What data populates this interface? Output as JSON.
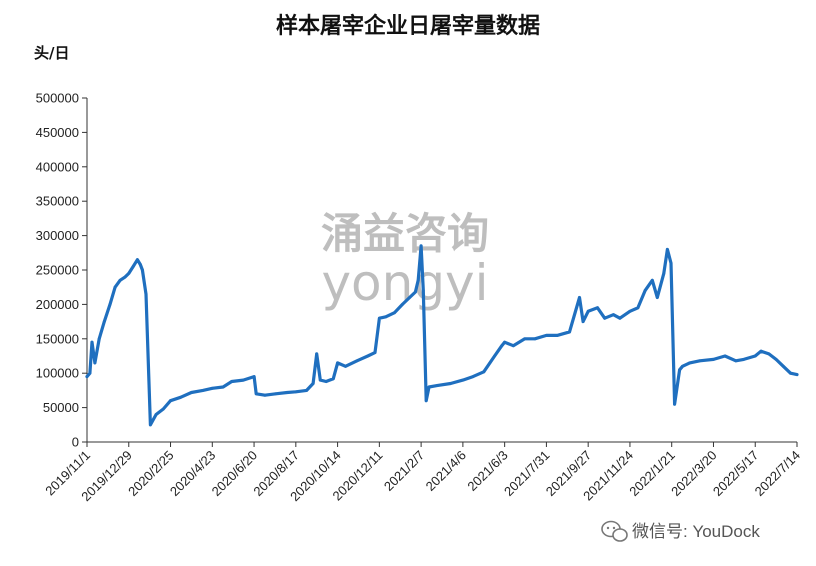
{
  "chart_data": {
    "type": "line",
    "title": "样本屠宰企业日屠宰量数据",
    "ylabel": "头/日",
    "xlabel": "",
    "ylim": [
      0,
      500000
    ],
    "y_ticks": [
      "500000",
      "450000",
      "400000",
      "350000",
      "300000",
      "250000",
      "200000",
      "150000",
      "100000",
      "50000",
      "0"
    ],
    "x_ticks": [
      "2019/11/1",
      "2019/12/29",
      "2020/2/25",
      "2020/4/23",
      "2020/6/20",
      "2020/8/17",
      "2020/10/14",
      "2020/12/11",
      "2021/2/7",
      "2021/4/6",
      "2021/6/3",
      "2021/7/31",
      "2021/9/27",
      "2021/11/24",
      "2022/1/21",
      "2022/3/20",
      "2022/5/17",
      "2022/7/14"
    ],
    "grid": false,
    "legend": "none",
    "series": [
      {
        "color": "#1f6fbf",
        "x": [
          "2019/11/1",
          "2019/11/5",
          "2019/11/8",
          "2019/11/12",
          "2019/11/18",
          "2019/11/25",
          "2019/12/3",
          "2019/12/10",
          "2019/12/17",
          "2019/12/24",
          "2019/12/29",
          "2020/1/4",
          "2020/1/10",
          "2020/1/14",
          "2020/1/17",
          "2020/1/22",
          "2020/1/28",
          "2020/2/5",
          "2020/2/15",
          "2020/2/25",
          "2020/3/10",
          "2020/3/25",
          "2020/4/10",
          "2020/4/23",
          "2020/5/8",
          "2020/5/20",
          "2020/6/5",
          "2020/6/20",
          "2020/6/23",
          "2020/7/5",
          "2020/7/20",
          "2020/8/5",
          "2020/8/17",
          "2020/9/1",
          "2020/9/10",
          "2020/9/15",
          "2020/9/20",
          "2020/9/28",
          "2020/10/8",
          "2020/10/14",
          "2020/10/25",
          "2020/11/10",
          "2020/11/25",
          "2020/12/5",
          "2020/12/11",
          "2020/12/20",
          "2021/1/1",
          "2021/1/12",
          "2021/1/22",
          "2021/1/30",
          "2021/2/3",
          "2021/2/7",
          "2021/2/10",
          "2021/2/14",
          "2021/2/18",
          "2021/3/1",
          "2021/3/20",
          "2021/4/6",
          "2021/4/20",
          "2021/5/5",
          "2021/5/20",
          "2021/5/30",
          "2021/6/3",
          "2021/6/15",
          "2021/7/1",
          "2021/7/15",
          "2021/7/31",
          "2021/8/15",
          "2021/9/1",
          "2021/9/15",
          "2021/9/20",
          "2021/9/27",
          "2021/10/10",
          "2021/10/20",
          "2021/11/1",
          "2021/11/10",
          "2021/11/24",
          "2021/12/5",
          "2021/12/15",
          "2021/12/25",
          "2022/1/1",
          "2022/1/10",
          "2022/1/15",
          "2022/1/20",
          "2022/1/25",
          "2022/2/1",
          "2022/2/5",
          "2022/2/15",
          "2022/3/1",
          "2022/3/20",
          "2022/4/5",
          "2022/4/20",
          "2022/5/1",
          "2022/5/17",
          "2022/5/25",
          "2022/6/5",
          "2022/6/15",
          "2022/6/25",
          "2022/7/5",
          "2022/7/14"
        ],
        "values": [
          95000,
          100000,
          145000,
          115000,
          150000,
          175000,
          200000,
          225000,
          235000,
          240000,
          245000,
          255000,
          265000,
          258000,
          250000,
          215000,
          25000,
          40000,
          48000,
          60000,
          65000,
          72000,
          75000,
          78000,
          80000,
          88000,
          90000,
          95000,
          70000,
          68000,
          70000,
          72000,
          73000,
          75000,
          85000,
          128000,
          90000,
          88000,
          92000,
          115000,
          110000,
          118000,
          125000,
          130000,
          180000,
          182000,
          188000,
          200000,
          210000,
          218000,
          235000,
          285000,
          220000,
          60000,
          80000,
          82000,
          85000,
          90000,
          95000,
          102000,
          125000,
          140000,
          145000,
          140000,
          150000,
          150000,
          155000,
          155000,
          160000,
          210000,
          175000,
          190000,
          195000,
          180000,
          185000,
          180000,
          190000,
          195000,
          220000,
          235000,
          210000,
          245000,
          280000,
          260000,
          55000,
          105000,
          110000,
          115000,
          118000,
          120000,
          125000,
          118000,
          120000,
          125000,
          132000,
          128000,
          120000,
          110000,
          100000,
          98000
        ]
      }
    ]
  },
  "watermark": {
    "line1": "涌益咨询",
    "line2": "yongyi"
  },
  "credit": {
    "text": "微信号: YouDock"
  },
  "icons": {
    "wechat": "wechat-icon"
  }
}
